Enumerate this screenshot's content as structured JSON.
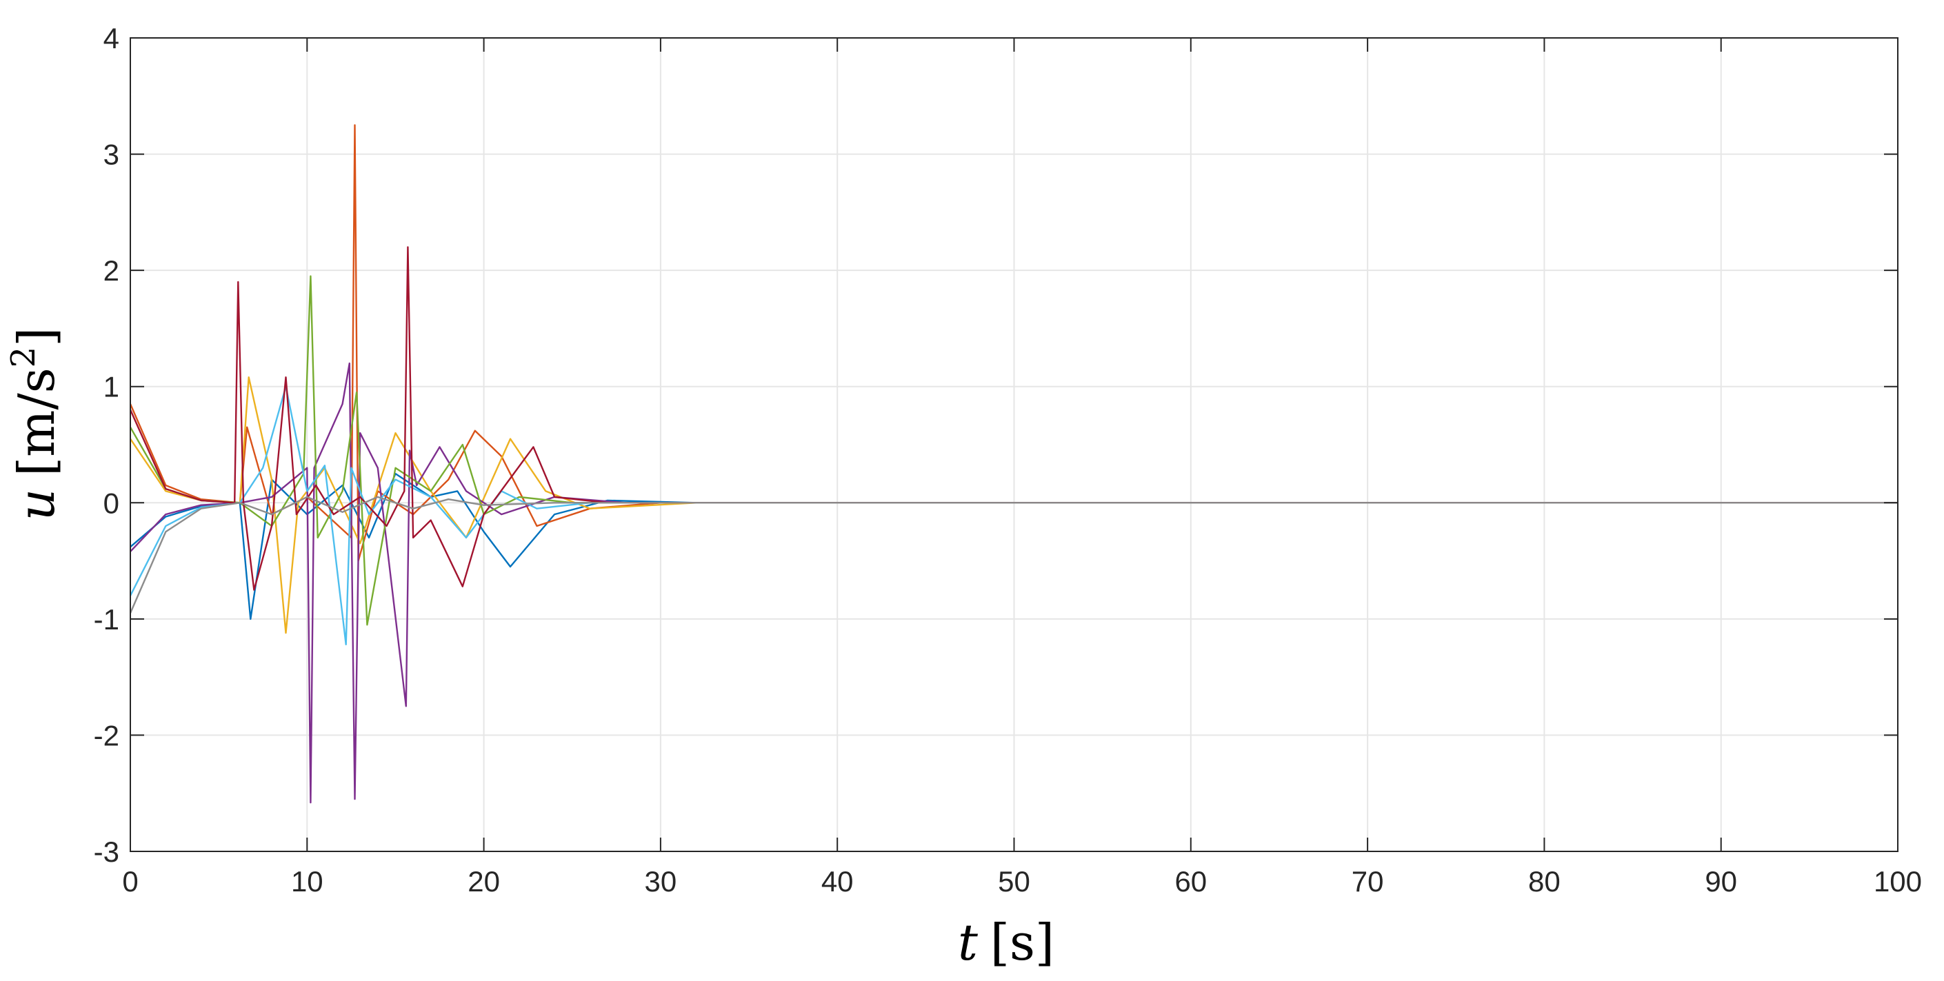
{
  "chart_data": {
    "type": "line",
    "title": "",
    "xlabel": {
      "var": "t",
      "unit": "[s]"
    },
    "ylabel": {
      "var": "u",
      "unit": "[m/s",
      "sup": "2",
      "close": "]"
    },
    "xlim": [
      0,
      100
    ],
    "ylim": [
      -3,
      4
    ],
    "xticks": [
      "0",
      "10",
      "20",
      "30",
      "40",
      "50",
      "60",
      "70",
      "80",
      "90",
      "100"
    ],
    "yticks": [
      "-3",
      "-2",
      "-1",
      "0",
      "1",
      "2",
      "3",
      "4"
    ],
    "grid": true,
    "legend": "none",
    "series": [
      {
        "color": "#0072BD",
        "x": [
          0,
          2,
          4,
          6.2,
          6.8,
          8,
          10,
          12,
          13.5,
          15,
          17,
          18.5,
          20,
          21.5,
          24,
          27,
          32,
          40,
          100
        ],
        "y": [
          -0.38,
          -0.12,
          -0.03,
          0.0,
          -1.0,
          0.2,
          -0.1,
          0.15,
          -0.3,
          0.25,
          0.05,
          0.1,
          -0.25,
          -0.55,
          -0.1,
          0.02,
          0.0,
          0.0,
          0.0
        ]
      },
      {
        "color": "#D95319",
        "x": [
          0,
          2,
          4,
          6.2,
          6.6,
          8,
          10,
          12.5,
          12.7,
          12.9,
          14,
          16,
          18,
          19.5,
          21,
          23,
          26,
          30,
          40,
          100
        ],
        "y": [
          0.85,
          0.15,
          0.03,
          0.0,
          0.65,
          -0.1,
          0.05,
          -0.3,
          3.25,
          -0.5,
          0.1,
          -0.1,
          0.2,
          0.62,
          0.4,
          -0.2,
          -0.05,
          0.0,
          0.0,
          0.0
        ]
      },
      {
        "color": "#EDB120",
        "x": [
          0,
          2,
          4,
          6.2,
          6.7,
          8,
          8.8,
          9.5,
          11,
          13,
          15,
          17,
          19,
          21.5,
          23.5,
          26,
          32,
          42,
          100
        ],
        "y": [
          0.55,
          0.1,
          0.02,
          0.0,
          1.08,
          0.2,
          -1.12,
          0.0,
          0.3,
          -0.35,
          0.6,
          0.1,
          -0.3,
          0.55,
          0.1,
          -0.05,
          0.0,
          0.0,
          0.0
        ]
      },
      {
        "color": "#7E2F8E",
        "x": [
          0,
          2,
          4,
          6.2,
          8,
          10,
          10.2,
          10.4,
          12,
          12.4,
          12.7,
          13,
          14,
          15.6,
          15.8,
          16.2,
          17.5,
          19,
          21,
          24,
          28,
          100
        ],
        "y": [
          -0.42,
          -0.1,
          -0.02,
          0.0,
          0.05,
          0.3,
          -2.58,
          0.3,
          0.85,
          1.2,
          -2.55,
          0.6,
          0.3,
          -1.75,
          0.45,
          0.15,
          0.48,
          0.1,
          -0.1,
          0.05,
          0.0,
          0.0
        ]
      },
      {
        "color": "#77AC30",
        "x": [
          0,
          2,
          4,
          6.2,
          8,
          9.8,
          10.2,
          10.6,
          12,
          12.8,
          13.4,
          15,
          17,
          18.8,
          20,
          22,
          25,
          30,
          100
        ],
        "y": [
          0.65,
          0.12,
          0.02,
          0.0,
          -0.2,
          0.25,
          1.95,
          -0.3,
          0.1,
          0.95,
          -1.05,
          0.3,
          0.1,
          0.5,
          -0.1,
          0.05,
          0.0,
          0.0,
          0.0
        ]
      },
      {
        "color": "#4DBEEE",
        "x": [
          0,
          2,
          4,
          6.2,
          7.5,
          8.8,
          10,
          11,
          12.2,
          12.5,
          13.5,
          15,
          17,
          19,
          21,
          23,
          26,
          30,
          100
        ],
        "y": [
          -0.8,
          -0.2,
          -0.04,
          0.0,
          0.3,
          1.0,
          0.1,
          0.32,
          -1.22,
          0.3,
          -0.1,
          0.2,
          0.05,
          -0.3,
          0.1,
          -0.05,
          0.0,
          0.0,
          0.0
        ]
      },
      {
        "color": "#A2142F",
        "x": [
          0,
          2,
          4,
          5.9,
          6.1,
          6.4,
          7,
          8,
          8.8,
          9.4,
          10.5,
          11.5,
          13,
          14.5,
          15.5,
          15.7,
          16,
          17,
          18.8,
          20,
          22.8,
          24,
          27,
          32,
          100
        ],
        "y": [
          0.8,
          0.12,
          0.02,
          0.0,
          1.9,
          0.0,
          -0.75,
          -0.2,
          1.08,
          -0.1,
          0.15,
          -0.1,
          0.05,
          -0.2,
          0.1,
          2.2,
          -0.3,
          -0.15,
          -0.72,
          -0.1,
          0.48,
          0.05,
          0.0,
          0.0,
          0.0
        ]
      },
      {
        "color": "#8C8C8C",
        "x": [
          0,
          2,
          4,
          6.2,
          8,
          10,
          12,
          14,
          16,
          18,
          20,
          24,
          30,
          100
        ],
        "y": [
          -0.95,
          -0.25,
          -0.05,
          0.0,
          -0.1,
          0.05,
          -0.08,
          0.05,
          -0.05,
          0.03,
          -0.02,
          0.0,
          0.0,
          0.0
        ]
      }
    ]
  }
}
